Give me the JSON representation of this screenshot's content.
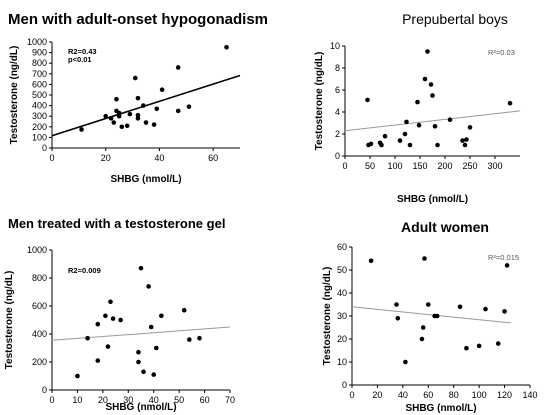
{
  "chart_data": [
    {
      "type": "scatter",
      "title": "Men with adult-onset hypogonadism",
      "xlabel": "SHBG (nmol/L)",
      "ylabel": "Testosterone (ng/dL)",
      "xlim": [
        0,
        70
      ],
      "ylim": [
        0,
        1000
      ],
      "xticks": [
        0,
        20,
        40,
        60
      ],
      "yticks": [
        0,
        100,
        200,
        300,
        400,
        500,
        600,
        700,
        800,
        900,
        1000
      ],
      "annotations": [
        "R2=0.43",
        "p<0.01"
      ],
      "trend": {
        "x": [
          0,
          70
        ],
        "y": [
          116,
          684
        ]
      },
      "grid": false,
      "points": [
        {
          "x": 11,
          "y": 175
        },
        {
          "x": 20,
          "y": 300
        },
        {
          "x": 22,
          "y": 280
        },
        {
          "x": 23,
          "y": 240
        },
        {
          "x": 24,
          "y": 460
        },
        {
          "x": 24,
          "y": 350
        },
        {
          "x": 25,
          "y": 330
        },
        {
          "x": 25,
          "y": 300
        },
        {
          "x": 26,
          "y": 200
        },
        {
          "x": 28,
          "y": 210
        },
        {
          "x": 29,
          "y": 320
        },
        {
          "x": 31,
          "y": 660
        },
        {
          "x": 32,
          "y": 470
        },
        {
          "x": 32,
          "y": 310
        },
        {
          "x": 32,
          "y": 280
        },
        {
          "x": 34,
          "y": 400
        },
        {
          "x": 35,
          "y": 240
        },
        {
          "x": 38,
          "y": 220
        },
        {
          "x": 39,
          "y": 370
        },
        {
          "x": 41,
          "y": 550
        },
        {
          "x": 47,
          "y": 760
        },
        {
          "x": 47,
          "y": 350
        },
        {
          "x": 51,
          "y": 390
        },
        {
          "x": 65,
          "y": 950
        }
      ]
    },
    {
      "type": "scatter",
      "title": "Prepubertal boys",
      "xlabel": "SHBG (nmol/L)",
      "ylabel": "Testosterone (ng/dL)",
      "xlim": [
        0,
        350
      ],
      "ylim": [
        0,
        10
      ],
      "xticks": [
        0,
        50,
        100,
        150,
        200,
        250,
        300
      ],
      "yticks": [
        0,
        2,
        4,
        6,
        8,
        10
      ],
      "annotations": [
        "R²=0.03"
      ],
      "trend": {
        "x": [
          0,
          350
        ],
        "y": [
          2.3,
          4.1
        ]
      },
      "grid": false,
      "points": [
        {
          "x": 45,
          "y": 5.1
        },
        {
          "x": 47,
          "y": 1.0
        },
        {
          "x": 52,
          "y": 1.1
        },
        {
          "x": 70,
          "y": 1.2
        },
        {
          "x": 73,
          "y": 1.0
        },
        {
          "x": 80,
          "y": 1.8
        },
        {
          "x": 110,
          "y": 1.4
        },
        {
          "x": 120,
          "y": 2.0
        },
        {
          "x": 123,
          "y": 3.1
        },
        {
          "x": 130,
          "y": 1.0
        },
        {
          "x": 145,
          "y": 4.9
        },
        {
          "x": 148,
          "y": 2.8
        },
        {
          "x": 160,
          "y": 7.0
        },
        {
          "x": 165,
          "y": 9.5
        },
        {
          "x": 172,
          "y": 6.5
        },
        {
          "x": 175,
          "y": 5.5
        },
        {
          "x": 180,
          "y": 2.7
        },
        {
          "x": 185,
          "y": 1.0
        },
        {
          "x": 210,
          "y": 3.3
        },
        {
          "x": 235,
          "y": 1.4
        },
        {
          "x": 240,
          "y": 1.0
        },
        {
          "x": 243,
          "y": 1.5
        },
        {
          "x": 250,
          "y": 2.6
        },
        {
          "x": 330,
          "y": 4.8
        }
      ]
    },
    {
      "type": "scatter",
      "title": "Men treated with a testosterone gel",
      "xlabel": "SHBG (nmol/L)",
      "ylabel": "Testosterone (ng/dL)",
      "xlim": [
        0,
        70
      ],
      "ylim": [
        0,
        1000
      ],
      "xticks": [
        0,
        10,
        20,
        30,
        40,
        50,
        60,
        70
      ],
      "yticks": [
        0,
        200,
        400,
        600,
        800,
        1000
      ],
      "annotations": [
        "R2=0.009"
      ],
      "trend": {
        "x": [
          0,
          70
        ],
        "y": [
          355,
          450
        ]
      },
      "grid": false,
      "points": [
        {
          "x": 10,
          "y": 100
        },
        {
          "x": 14,
          "y": 370
        },
        {
          "x": 18,
          "y": 470
        },
        {
          "x": 18,
          "y": 210
        },
        {
          "x": 21,
          "y": 530
        },
        {
          "x": 22,
          "y": 310
        },
        {
          "x": 23,
          "y": 630
        },
        {
          "x": 24,
          "y": 510
        },
        {
          "x": 27,
          "y": 500
        },
        {
          "x": 34,
          "y": 270
        },
        {
          "x": 34,
          "y": 200
        },
        {
          "x": 35,
          "y": 870
        },
        {
          "x": 36,
          "y": 130
        },
        {
          "x": 38,
          "y": 740
        },
        {
          "x": 39,
          "y": 450
        },
        {
          "x": 40,
          "y": 110
        },
        {
          "x": 41,
          "y": 300
        },
        {
          "x": 43,
          "y": 530
        },
        {
          "x": 52,
          "y": 570
        },
        {
          "x": 54,
          "y": 360
        },
        {
          "x": 58,
          "y": 370
        }
      ]
    },
    {
      "type": "scatter",
      "title": "Adult women",
      "xlabel": "SHBG (nmol/L)",
      "ylabel": "Testosterone (ng/dL)",
      "xlim": [
        0,
        140
      ],
      "ylim": [
        0,
        60
      ],
      "xticks": [
        0,
        20,
        40,
        60,
        80,
        100,
        120,
        140
      ],
      "yticks": [
        0,
        10,
        20,
        30,
        40,
        50,
        60
      ],
      "annotations": [
        "R²=0.015"
      ],
      "trend": {
        "x": [
          0,
          125
        ],
        "y": [
          34,
          27
        ]
      },
      "grid": false,
      "points": [
        {
          "x": 15,
          "y": 54
        },
        {
          "x": 35,
          "y": 35
        },
        {
          "x": 36,
          "y": 29
        },
        {
          "x": 42,
          "y": 10
        },
        {
          "x": 55,
          "y": 20
        },
        {
          "x": 56,
          "y": 25
        },
        {
          "x": 57,
          "y": 55
        },
        {
          "x": 60,
          "y": 35
        },
        {
          "x": 65,
          "y": 30
        },
        {
          "x": 67,
          "y": 30
        },
        {
          "x": 85,
          "y": 34
        },
        {
          "x": 90,
          "y": 16
        },
        {
          "x": 100,
          "y": 17
        },
        {
          "x": 105,
          "y": 33
        },
        {
          "x": 115,
          "y": 18
        },
        {
          "x": 120,
          "y": 32
        },
        {
          "x": 122,
          "y": 52
        }
      ]
    }
  ]
}
